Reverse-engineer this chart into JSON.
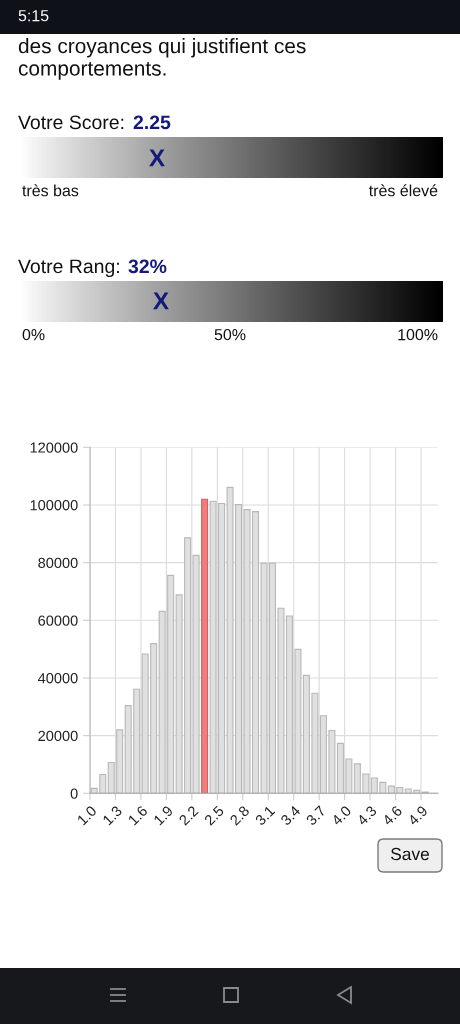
{
  "chart_data": {
    "type": "histogram",
    "bins": [
      1.0,
      1.1,
      1.2,
      1.3,
      1.4,
      1.5,
      1.6,
      1.7,
      1.8,
      1.9,
      2.0,
      2.1,
      2.2,
      2.3,
      2.4,
      2.5,
      2.6,
      2.7,
      2.8,
      2.9,
      3.0,
      3.1,
      3.2,
      3.3,
      3.4,
      3.5,
      3.6,
      3.7,
      3.8,
      3.9,
      4.0,
      4.1,
      4.2,
      4.3,
      4.4,
      4.5,
      4.6,
      4.7,
      4.8,
      4.9,
      5.0
    ],
    "values": [
      1700,
      6500,
      10700,
      22000,
      30400,
      36100,
      48300,
      51900,
      63100,
      75600,
      68800,
      88600,
      82500,
      102000,
      101300,
      100500,
      106100,
      100100,
      98400,
      97700,
      79800,
      79800,
      64200,
      61500,
      49900,
      40900,
      34700,
      26900,
      21800,
      17300,
      11900,
      10200,
      6700,
      5300,
      3800,
      2500,
      2000,
      1500,
      1000,
      400
    ],
    "colors": [
      "#e0e0e0",
      "#e0e0e0",
      "#e0e0e0",
      "#e0e0e0",
      "#e0e0e0",
      "#e0e0e0",
      "#e0e0e0",
      "#e0e0e0",
      "#e0e0e0",
      "#e0e0e0",
      "#e0e0e0",
      "#e0e0e0",
      "#e0e0e0",
      "#f47b7b",
      "#e0e0e0",
      "#e0e0e0",
      "#e0e0e0",
      "#e0e0e0",
      "#e0e0e0",
      "#e0e0e0",
      "#e0e0e0",
      "#e0e0e0",
      "#e0e0e0",
      "#e0e0e0",
      "#e0e0e0",
      "#e0e0e0",
      "#e0e0e0",
      "#e0e0e0",
      "#e0e0e0",
      "#e0e0e0",
      "#e0e0e0",
      "#e0e0e0",
      "#e0e0e0",
      "#e0e0e0",
      "#e0e0e0",
      "#e0e0e0",
      "#e0e0e0",
      "#e0e0e0",
      "#e0e0e0",
      "#e0e0e0"
    ],
    "xlim": [
      1.0,
      5.1
    ],
    "ylim": [
      0,
      120000
    ],
    "xticks": [
      {
        "value": 1.0,
        "label": "1.0"
      },
      {
        "value": 1.3,
        "label": "1.3"
      },
      {
        "value": 1.6,
        "label": "1.6"
      },
      {
        "value": 1.9,
        "label": "1.9"
      },
      {
        "value": 2.2,
        "label": "2.2"
      },
      {
        "value": 2.5,
        "label": "2.5"
      },
      {
        "value": 2.8,
        "label": "2.8"
      },
      {
        "value": 3.1,
        "label": "3.1"
      },
      {
        "value": 3.4,
        "label": "3.4"
      },
      {
        "value": 3.7,
        "label": "3.7"
      },
      {
        "value": 4.0,
        "label": "4.0"
      },
      {
        "value": 4.3,
        "label": "4.3"
      },
      {
        "value": 4.6,
        "label": "4.6"
      },
      {
        "value": 4.9,
        "label": "4.9"
      }
    ],
    "yticks": [
      0,
      20000,
      40000,
      60000,
      80000,
      100000,
      120000
    ],
    "grid": true,
    "annotations": [
      "5:15",
      "des croyances qui justifient ces comportements.",
      "Votre Score:",
      "2.25",
      "X",
      "très bas",
      "très élevé",
      "Votre Rang:",
      "32%",
      "X",
      "0%",
      "50%",
      "100%",
      "Save"
    ]
  }
}
